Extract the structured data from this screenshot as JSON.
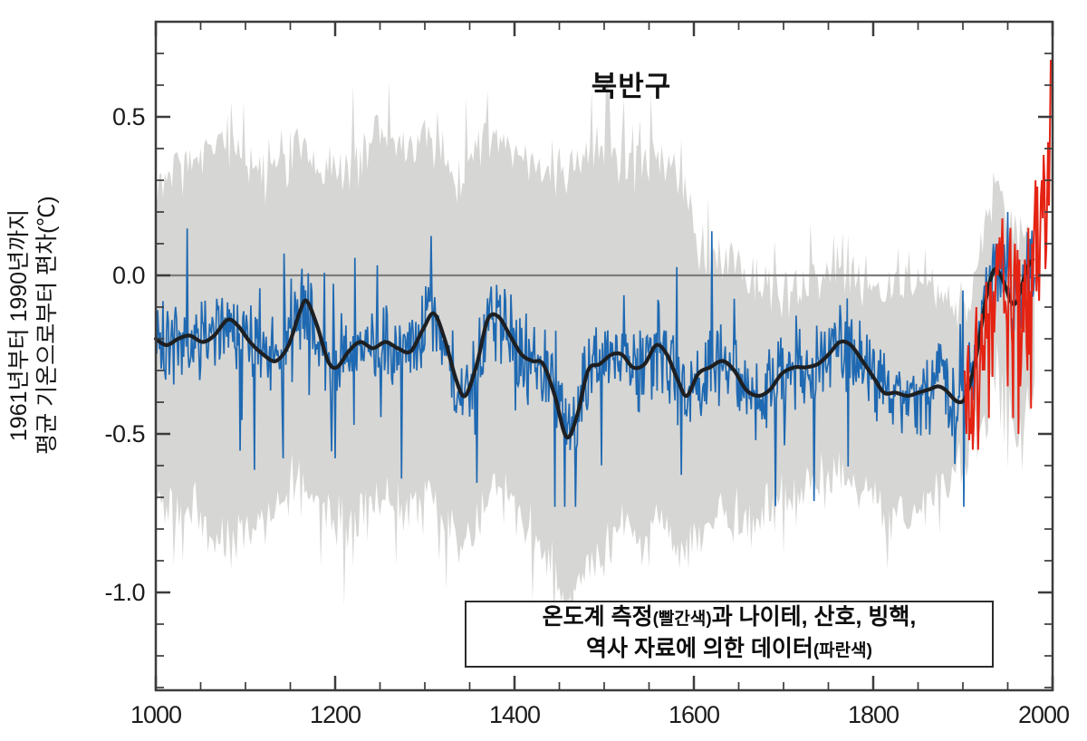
{
  "legend": {
    "line1_main": "온도계 측정",
    "line1_paren": "(빨간색)",
    "line1_rest": "과 나이테, 산호, 빙핵,",
    "line2_main": "역사 자료에 의한 데이터",
    "line2_paren": "(파란색)"
  },
  "colors": {
    "band": "#d6d6d4",
    "annual_proxy_blue": "#1f69b2",
    "smoothed_black": "#1d1f22",
    "instrumental_red": "#e42313",
    "zero_line": "#7d7d7d",
    "frame": "#3c3c3c",
    "text": "#1c1c1c"
  },
  "chart_data": {
    "type": "line",
    "title": "북반구",
    "ylabel_line1": "1961년부터 1990년까지",
    "ylabel_line2": "평균 기온으로부터 편차(℃)",
    "xlabel": "",
    "xlim": [
      1000,
      2000
    ],
    "ylim": [
      -1.31,
      0.8
    ],
    "grid": false,
    "xticks": [
      {
        "value": 1000,
        "label": "1000"
      },
      {
        "value": 1200,
        "label": "1200"
      },
      {
        "value": 1400,
        "label": "1400"
      },
      {
        "value": 1600,
        "label": "1600"
      },
      {
        "value": 1800,
        "label": "1800"
      },
      {
        "value": 2000,
        "label": "2000"
      }
    ],
    "yticks": [
      {
        "value": 0.5,
        "label": "0.5"
      },
      {
        "value": 0.0,
        "label": "0.0"
      },
      {
        "value": -0.5,
        "label": "-0.5"
      },
      {
        "value": -1.0,
        "label": "-1.0"
      }
    ],
    "x_minor_step": 50,
    "y_minor_step": 0.1,
    "zero_line": 0.0,
    "series": [
      {
        "name": "uncertainty-band",
        "type": "band",
        "color": "#d6d6d4",
        "edge_jitter": 0.1,
        "spike_prob": 0.12,
        "spike_amp": 0.2,
        "seed": 7,
        "points": [
          [
            1000,
            0.28,
            -0.7
          ],
          [
            1020,
            0.33,
            -0.75
          ],
          [
            1040,
            0.36,
            -0.72
          ],
          [
            1060,
            0.4,
            -0.8
          ],
          [
            1080,
            0.42,
            -0.85
          ],
          [
            1100,
            0.36,
            -0.82
          ],
          [
            1120,
            0.3,
            -0.76
          ],
          [
            1140,
            0.32,
            -0.72
          ],
          [
            1160,
            0.4,
            -0.62
          ],
          [
            1180,
            0.33,
            -0.7
          ],
          [
            1200,
            0.3,
            -0.78
          ],
          [
            1220,
            0.35,
            -0.75
          ],
          [
            1240,
            0.42,
            -0.72
          ],
          [
            1260,
            0.45,
            -0.7
          ],
          [
            1280,
            0.36,
            -0.76
          ],
          [
            1300,
            0.44,
            -0.66
          ],
          [
            1320,
            0.36,
            -0.75
          ],
          [
            1340,
            0.3,
            -0.85
          ],
          [
            1360,
            0.42,
            -0.75
          ],
          [
            1380,
            0.46,
            -0.66
          ],
          [
            1400,
            0.42,
            -0.74
          ],
          [
            1420,
            0.38,
            -0.8
          ],
          [
            1440,
            0.34,
            -0.9
          ],
          [
            1460,
            0.3,
            -1.0
          ],
          [
            1480,
            0.38,
            -0.92
          ],
          [
            1500,
            0.42,
            -0.85
          ],
          [
            1520,
            0.36,
            -0.8
          ],
          [
            1540,
            0.32,
            -0.84
          ],
          [
            1560,
            0.4,
            -0.76
          ],
          [
            1580,
            0.32,
            -0.88
          ],
          [
            1598,
            0.22,
            -0.85
          ],
          [
            1604,
            0.05,
            -0.8
          ],
          [
            1620,
            0.02,
            -0.76
          ],
          [
            1640,
            0.08,
            -0.75
          ],
          [
            1660,
            -0.02,
            -0.78
          ],
          [
            1680,
            -0.04,
            -0.74
          ],
          [
            1700,
            -0.06,
            -0.7
          ],
          [
            1720,
            -0.02,
            -0.7
          ],
          [
            1740,
            0.0,
            -0.66
          ],
          [
            1760,
            0.05,
            -0.6
          ],
          [
            1780,
            0.0,
            -0.64
          ],
          [
            1800,
            -0.04,
            -0.7
          ],
          [
            1820,
            -0.06,
            -0.76
          ],
          [
            1840,
            -0.05,
            -0.74
          ],
          [
            1860,
            -0.04,
            -0.7
          ],
          [
            1880,
            -0.08,
            -0.66
          ],
          [
            1900,
            -0.1,
            -0.56
          ],
          [
            1915,
            -0.02,
            -0.5
          ],
          [
            1930,
            0.25,
            -0.35
          ],
          [
            1940,
            0.3,
            -0.25
          ],
          [
            1950,
            0.15,
            -0.4
          ],
          [
            1960,
            0.1,
            -0.48
          ],
          [
            1970,
            0.12,
            -0.45
          ],
          [
            1981,
            0.15,
            -0.35
          ]
        ]
      },
      {
        "name": "annual-proxy",
        "type": "noisy-line",
        "color": "#1f69b2",
        "start": 1000,
        "end": 1980,
        "base": "smoothed-40yr",
        "base_jitter": 0.16,
        "spike_prob": 0.06,
        "spike_amp": 0.42,
        "clamp": [
          -0.73,
          0.2
        ],
        "seed": 20
      },
      {
        "name": "smoothed-40yr",
        "type": "smooth-line",
        "color": "#1d1f22",
        "points": [
          [
            1000,
            -0.2
          ],
          [
            1012,
            -0.22
          ],
          [
            1025,
            -0.2
          ],
          [
            1038,
            -0.19
          ],
          [
            1052,
            -0.21
          ],
          [
            1065,
            -0.19
          ],
          [
            1080,
            -0.14
          ],
          [
            1092,
            -0.16
          ],
          [
            1105,
            -0.21
          ],
          [
            1120,
            -0.25
          ],
          [
            1134,
            -0.27
          ],
          [
            1148,
            -0.22
          ],
          [
            1160,
            -0.12
          ],
          [
            1168,
            -0.08
          ],
          [
            1180,
            -0.16
          ],
          [
            1192,
            -0.27
          ],
          [
            1202,
            -0.29
          ],
          [
            1215,
            -0.24
          ],
          [
            1228,
            -0.21
          ],
          [
            1242,
            -0.23
          ],
          [
            1256,
            -0.21
          ],
          [
            1270,
            -0.23
          ],
          [
            1284,
            -0.24
          ],
          [
            1298,
            -0.17
          ],
          [
            1310,
            -0.12
          ],
          [
            1322,
            -0.2
          ],
          [
            1335,
            -0.33
          ],
          [
            1345,
            -0.38
          ],
          [
            1358,
            -0.28
          ],
          [
            1370,
            -0.14
          ],
          [
            1382,
            -0.13
          ],
          [
            1395,
            -0.19
          ],
          [
            1408,
            -0.25
          ],
          [
            1420,
            -0.27
          ],
          [
            1432,
            -0.28
          ],
          [
            1445,
            -0.38
          ],
          [
            1458,
            -0.51
          ],
          [
            1470,
            -0.44
          ],
          [
            1482,
            -0.3
          ],
          [
            1495,
            -0.28
          ],
          [
            1508,
            -0.25
          ],
          [
            1520,
            -0.25
          ],
          [
            1532,
            -0.29
          ],
          [
            1545,
            -0.28
          ],
          [
            1558,
            -0.22
          ],
          [
            1570,
            -0.25
          ],
          [
            1582,
            -0.33
          ],
          [
            1592,
            -0.38
          ],
          [
            1605,
            -0.31
          ],
          [
            1618,
            -0.29
          ],
          [
            1632,
            -0.27
          ],
          [
            1645,
            -0.3
          ],
          [
            1658,
            -0.36
          ],
          [
            1672,
            -0.38
          ],
          [
            1685,
            -0.36
          ],
          [
            1698,
            -0.31
          ],
          [
            1712,
            -0.29
          ],
          [
            1725,
            -0.29
          ],
          [
            1738,
            -0.28
          ],
          [
            1750,
            -0.25
          ],
          [
            1763,
            -0.21
          ],
          [
            1775,
            -0.22
          ],
          [
            1788,
            -0.27
          ],
          [
            1800,
            -0.32
          ],
          [
            1812,
            -0.37
          ],
          [
            1825,
            -0.37
          ],
          [
            1838,
            -0.38
          ],
          [
            1850,
            -0.37
          ],
          [
            1862,
            -0.36
          ],
          [
            1872,
            -0.35
          ],
          [
            1880,
            -0.36
          ],
          [
            1890,
            -0.39
          ],
          [
            1896,
            -0.4
          ],
          [
            1902,
            -0.39
          ],
          [
            1908,
            -0.34
          ],
          [
            1914,
            -0.27
          ],
          [
            1920,
            -0.17
          ],
          [
            1926,
            -0.07
          ],
          [
            1931,
            -0.01
          ],
          [
            1936,
            0.02
          ],
          [
            1942,
            0.0
          ],
          [
            1948,
            -0.04
          ],
          [
            1953,
            -0.08
          ],
          [
            1958,
            -0.09
          ],
          [
            1963,
            -0.06
          ],
          [
            1968,
            -0.01
          ],
          [
            1973,
            0.03
          ],
          [
            1978,
            0.05
          ]
        ]
      },
      {
        "name": "instrumental",
        "type": "line",
        "color": "#e42313",
        "points": [
          [
            1902,
            -0.3
          ],
          [
            1903,
            -0.42
          ],
          [
            1904,
            -0.5
          ],
          [
            1905,
            -0.28
          ],
          [
            1906,
            -0.22
          ],
          [
            1907,
            -0.52
          ],
          [
            1908,
            -0.45
          ],
          [
            1909,
            -0.5
          ],
          [
            1910,
            -0.35
          ],
          [
            1911,
            -0.55
          ],
          [
            1912,
            -0.48
          ],
          [
            1913,
            -0.35
          ],
          [
            1914,
            -0.18
          ],
          [
            1915,
            -0.1
          ],
          [
            1916,
            -0.35
          ],
          [
            1917,
            -0.55
          ],
          [
            1918,
            -0.42
          ],
          [
            1919,
            -0.28
          ],
          [
            1920,
            -0.22
          ],
          [
            1921,
            -0.12
          ],
          [
            1922,
            -0.3
          ],
          [
            1923,
            -0.22
          ],
          [
            1924,
            -0.3
          ],
          [
            1925,
            -0.15
          ],
          [
            1926,
            -0.02
          ],
          [
            1927,
            -0.2
          ],
          [
            1928,
            -0.12
          ],
          [
            1929,
            -0.45
          ],
          [
            1930,
            -0.05
          ],
          [
            1931,
            -0.02
          ],
          [
            1932,
            -0.12
          ],
          [
            1933,
            -0.32
          ],
          [
            1934,
            -0.05
          ],
          [
            1935,
            -0.18
          ],
          [
            1936,
            -0.08
          ],
          [
            1937,
            0.02
          ],
          [
            1938,
            0.1
          ],
          [
            1939,
            0.0
          ],
          [
            1940,
            0.08
          ],
          [
            1941,
            0.12
          ],
          [
            1942,
            0.02
          ],
          [
            1943,
            0.08
          ],
          [
            1944,
            0.18
          ],
          [
            1945,
            0.05
          ],
          [
            1946,
            -0.12
          ],
          [
            1947,
            -0.08
          ],
          [
            1948,
            -0.1
          ],
          [
            1949,
            -0.15
          ],
          [
            1950,
            -0.35
          ],
          [
            1951,
            0.0
          ],
          [
            1952,
            0.08
          ],
          [
            1953,
            0.15
          ],
          [
            1954,
            -0.15
          ],
          [
            1955,
            -0.22
          ],
          [
            1956,
            -0.45
          ],
          [
            1957,
            0.02
          ],
          [
            1958,
            0.1
          ],
          [
            1959,
            0.0
          ],
          [
            1960,
            -0.08
          ],
          [
            1961,
            0.08
          ],
          [
            1962,
            -0.5
          ],
          [
            1963,
            0.05
          ],
          [
            1964,
            -0.35
          ],
          [
            1965,
            -0.28
          ],
          [
            1966,
            -0.15
          ],
          [
            1967,
            -0.02
          ],
          [
            1968,
            -0.18
          ],
          [
            1969,
            0.05
          ],
          [
            1970,
            0.02
          ],
          [
            1971,
            -0.22
          ],
          [
            1972,
            -0.3
          ],
          [
            1973,
            0.15
          ],
          [
            1974,
            -0.25
          ],
          [
            1975,
            -0.05
          ],
          [
            1976,
            -0.42
          ],
          [
            1977,
            0.1
          ],
          [
            1978,
            -0.05
          ],
          [
            1979,
            0.12
          ],
          [
            1980,
            0.2
          ],
          [
            1981,
            0.3
          ],
          [
            1982,
            -0.05
          ],
          [
            1983,
            0.28
          ],
          [
            1984,
            0.0
          ],
          [
            1985,
            -0.08
          ],
          [
            1986,
            0.1
          ],
          [
            1987,
            0.25
          ],
          [
            1988,
            0.3
          ],
          [
            1989,
            0.18
          ],
          [
            1990,
            0.38
          ],
          [
            1991,
            0.3
          ],
          [
            1992,
            0.02
          ],
          [
            1993,
            0.08
          ],
          [
            1994,
            0.25
          ],
          [
            1995,
            0.42
          ],
          [
            1996,
            0.22
          ],
          [
            1997,
            0.45
          ],
          [
            1998,
            0.68
          ]
        ]
      }
    ],
    "legend_position": "bottom-right-inside"
  }
}
